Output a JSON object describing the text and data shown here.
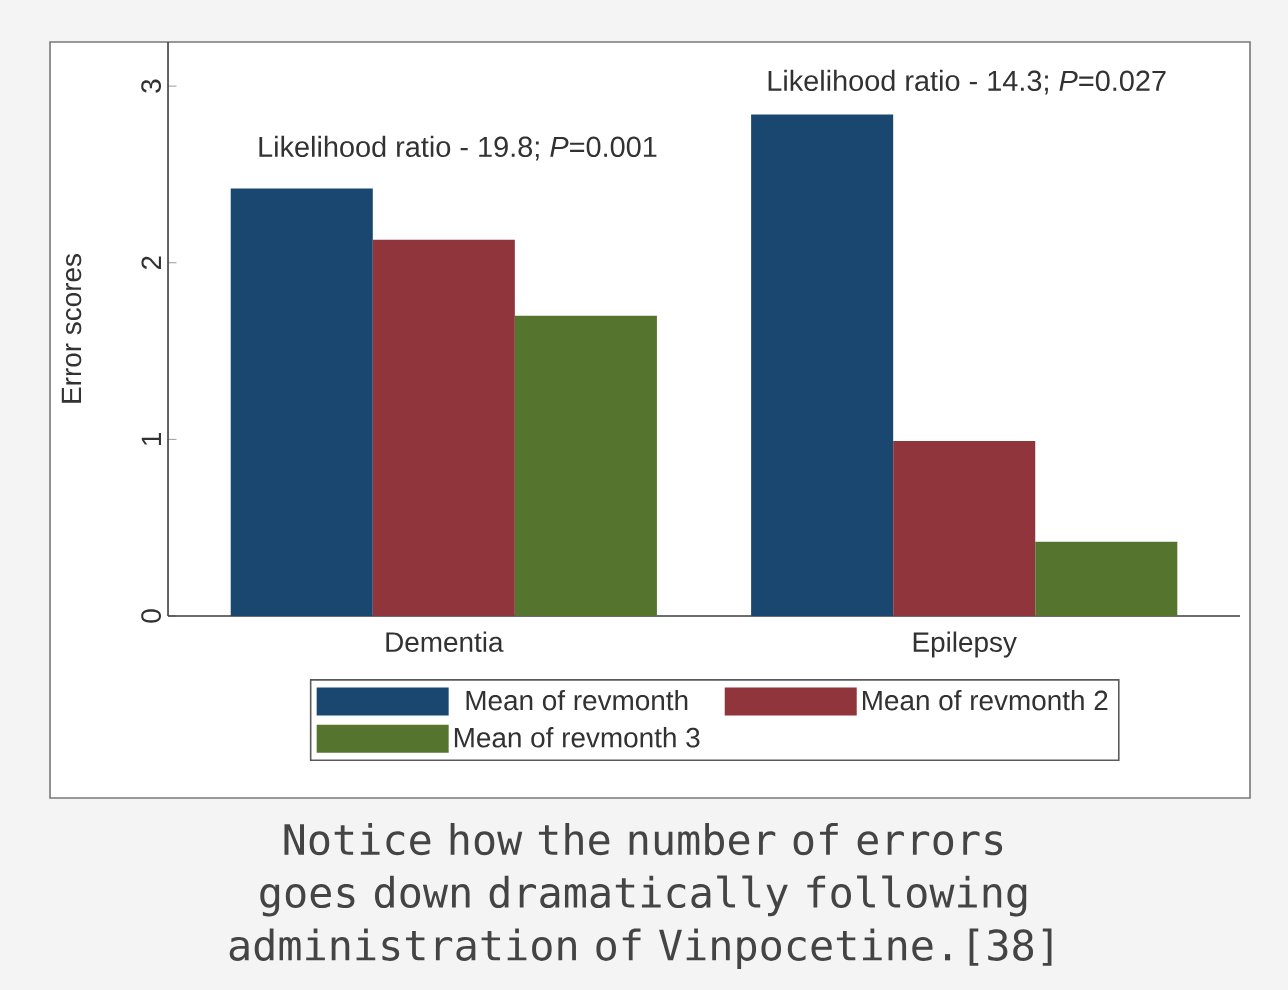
{
  "chart_data": {
    "type": "bar",
    "ylabel": "Error scores",
    "categories": [
      "Dementia",
      "Epilepsy"
    ],
    "series": [
      {
        "name": "Mean of revmonth",
        "color": "#1a476f",
        "values": [
          2.42,
          2.84
        ]
      },
      {
        "name": "Mean of revmonth 2",
        "color": "#90353b",
        "values": [
          2.13,
          0.99
        ]
      },
      {
        "name": "Mean of revmonth 3",
        "color": "#55752f",
        "values": [
          1.7,
          0.42
        ]
      }
    ],
    "ylim": [
      0,
      3.25
    ],
    "yticks": [
      0,
      1,
      2,
      3
    ],
    "grid": false,
    "legend": "bottom",
    "annotations": [
      "Likelihood ratio - 19.8; *P*=0.001",
      "Likelihood ratio - 14.3; *P*=0.027",
      "Notice how the number of errors goes down dramatically following administration of Vinpocetine.[38]"
    ]
  }
}
